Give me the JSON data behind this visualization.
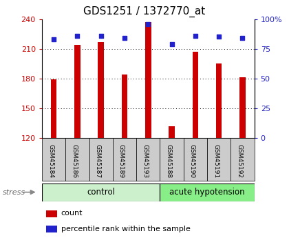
{
  "title": "GDS1251 / 1372770_at",
  "samples": [
    "GSM45184",
    "GSM45186",
    "GSM45187",
    "GSM45189",
    "GSM45193",
    "GSM45188",
    "GSM45190",
    "GSM45191",
    "GSM45192"
  ],
  "counts": [
    179,
    214,
    217,
    184,
    237,
    132,
    207,
    195,
    181
  ],
  "percentiles": [
    83,
    86,
    86,
    84,
    96,
    79,
    86,
    85,
    84
  ],
  "n_control": 5,
  "n_acute": 4,
  "ylim_left": [
    120,
    240
  ],
  "ylim_right": [
    0,
    100
  ],
  "yticks_left": [
    120,
    150,
    180,
    210,
    240
  ],
  "yticks_right": [
    0,
    25,
    50,
    75,
    100
  ],
  "bar_color": "#cc0000",
  "dot_color": "#2222cc",
  "bg_plot": "#ffffff",
  "bg_xlabel": "#cccccc",
  "bg_control": "#ccf0cc",
  "bg_acute": "#88ee88",
  "control_label": "control",
  "acute_label": "acute hypotension",
  "stress_label": "stress",
  "legend_count": "count",
  "legend_pct": "percentile rank within the sample",
  "title_fontsize": 11,
  "tick_fontsize": 8,
  "bar_width": 0.25
}
